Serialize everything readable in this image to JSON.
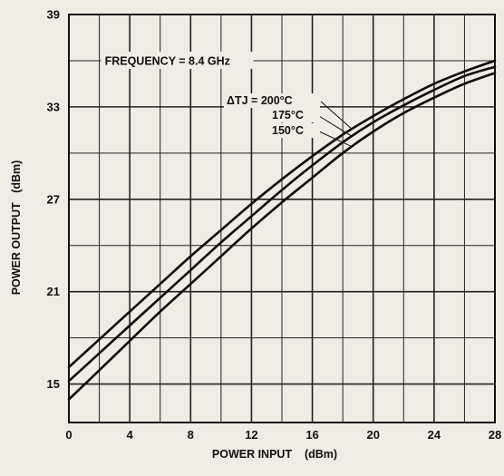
{
  "chart_data": {
    "type": "line",
    "annotation": "FREQUENCY = 8.4  GHz",
    "xlabel": "POWER INPUT    (dBm)",
    "ylabel": "POWER OUTPUT   (dBm)",
    "xlim": [
      0,
      28
    ],
    "ylim": [
      12.5,
      39
    ],
    "xticks": [
      0,
      4,
      8,
      12,
      16,
      20,
      24,
      28
    ],
    "yticks": [
      15,
      21,
      27,
      33,
      39
    ],
    "x_minor_step": 2,
    "y_minor_step": 3,
    "grid": true,
    "series": [
      {
        "name": "ΔTJ = 200°C",
        "x": [
          0,
          2,
          4,
          6,
          8,
          10,
          12,
          14,
          16,
          18,
          20,
          22,
          24,
          26,
          28
        ],
        "y": [
          16.1,
          17.9,
          19.7,
          21.5,
          23.3,
          25.0,
          26.7,
          28.3,
          29.8,
          31.2,
          32.4,
          33.5,
          34.5,
          35.3,
          36.0
        ]
      },
      {
        "name": "175°C",
        "x": [
          0,
          2,
          4,
          6,
          8,
          10,
          12,
          14,
          16,
          18,
          20,
          22,
          24,
          26,
          28
        ],
        "y": [
          15.2,
          17.0,
          18.8,
          20.6,
          22.4,
          24.2,
          25.9,
          27.6,
          29.2,
          30.7,
          32.0,
          33.1,
          34.1,
          35.0,
          35.6
        ]
      },
      {
        "name": "150°C",
        "x": [
          0,
          2,
          4,
          6,
          8,
          10,
          12,
          14,
          16,
          18,
          20,
          22,
          24,
          26,
          28
        ],
        "y": [
          14.0,
          15.9,
          17.8,
          19.7,
          21.5,
          23.3,
          25.1,
          26.8,
          28.4,
          30.0,
          31.4,
          32.6,
          33.6,
          34.5,
          35.2
        ]
      }
    ]
  }
}
